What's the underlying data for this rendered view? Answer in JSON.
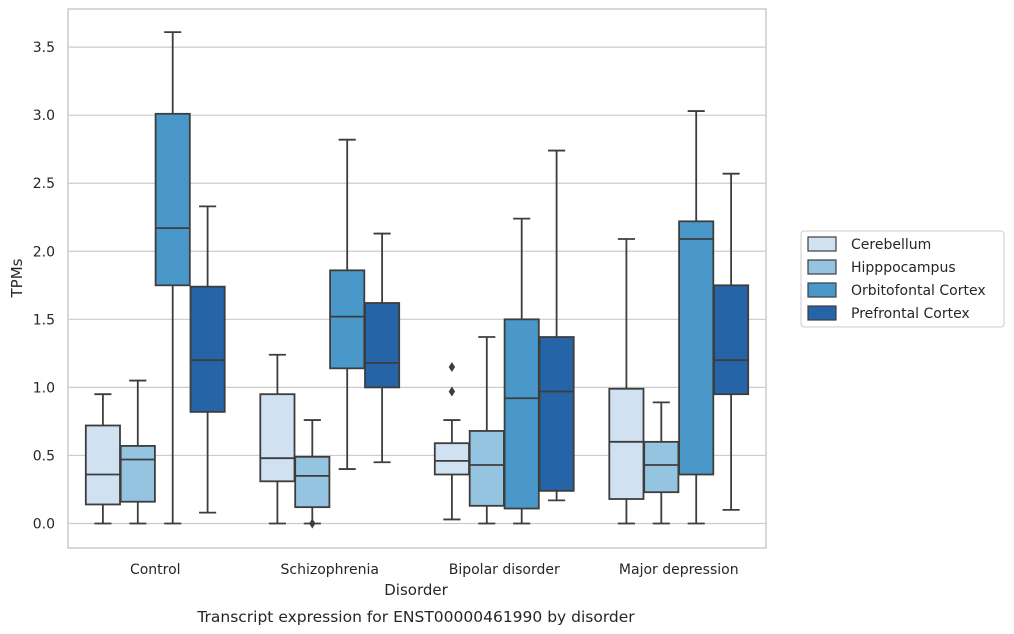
{
  "chart_data": {
    "type": "box",
    "caption": "Transcript expression for ENST00000461990 by disorder",
    "xlabel": "Disorder",
    "ylabel": "TPMs",
    "ylim": [
      -0.18,
      3.78
    ],
    "yticks": [
      "0.0",
      "0.5",
      "1.0",
      "1.5",
      "2.0",
      "2.5",
      "3.0",
      "3.5"
    ],
    "grid": "horizontal",
    "legend_placement": "right",
    "categories": [
      "Control",
      "Schizophrenia",
      "Bipolar disorder",
      "Major depression"
    ],
    "series": [
      {
        "name": "Cerebellum",
        "color": "#d0e1f2",
        "boxes": [
          {
            "min": 0.0,
            "q1": 0.14,
            "median": 0.36,
            "q3": 0.72,
            "max": 0.95,
            "outliers": []
          },
          {
            "min": 0.0,
            "q1": 0.31,
            "median": 0.48,
            "q3": 0.95,
            "max": 1.24,
            "outliers": []
          },
          {
            "min": 0.03,
            "q1": 0.36,
            "median": 0.46,
            "q3": 0.59,
            "max": 0.76,
            "outliers": [
              0.97,
              1.15
            ]
          },
          {
            "min": 0.0,
            "q1": 0.18,
            "median": 0.6,
            "q3": 0.99,
            "max": 2.09,
            "outliers": []
          }
        ]
      },
      {
        "name": "Hipppocampus",
        "color": "#94c4df",
        "boxes": [
          {
            "min": 0.0,
            "q1": 0.16,
            "median": 0.47,
            "q3": 0.57,
            "max": 1.05,
            "outliers": []
          },
          {
            "min": 0.0,
            "q1": 0.12,
            "median": 0.35,
            "q3": 0.49,
            "max": 0.76,
            "outliers": [
              0.0
            ]
          },
          {
            "min": 0.0,
            "q1": 0.13,
            "median": 0.43,
            "q3": 0.68,
            "max": 1.37,
            "outliers": []
          },
          {
            "min": 0.0,
            "q1": 0.23,
            "median": 0.43,
            "q3": 0.6,
            "max": 0.89,
            "outliers": []
          }
        ]
      },
      {
        "name": "Orbitofontal Cortex",
        "color": "#4a98c9",
        "boxes": [
          {
            "min": 0.0,
            "q1": 1.75,
            "median": 2.17,
            "q3": 3.01,
            "max": 3.61,
            "outliers": []
          },
          {
            "min": 0.4,
            "q1": 1.14,
            "median": 1.52,
            "q3": 1.86,
            "max": 2.82,
            "outliers": []
          },
          {
            "min": 0.0,
            "q1": 0.11,
            "median": 0.92,
            "q3": 1.5,
            "max": 2.24,
            "outliers": []
          },
          {
            "min": 0.0,
            "q1": 0.36,
            "median": 2.09,
            "q3": 2.22,
            "max": 3.03,
            "outliers": []
          }
        ]
      },
      {
        "name": "Prefrontal Cortex",
        "color": "#2565a7",
        "boxes": [
          {
            "min": 0.08,
            "q1": 0.82,
            "median": 1.2,
            "q3": 1.74,
            "max": 2.33,
            "outliers": []
          },
          {
            "min": 0.45,
            "q1": 1.0,
            "median": 1.18,
            "q3": 1.62,
            "max": 2.13,
            "outliers": []
          },
          {
            "min": 0.17,
            "q1": 0.24,
            "median": 0.97,
            "q3": 1.37,
            "max": 2.74,
            "outliers": []
          },
          {
            "min": 0.1,
            "q1": 0.95,
            "median": 1.2,
            "q3": 1.75,
            "max": 2.57,
            "outliers": []
          }
        ]
      }
    ]
  }
}
